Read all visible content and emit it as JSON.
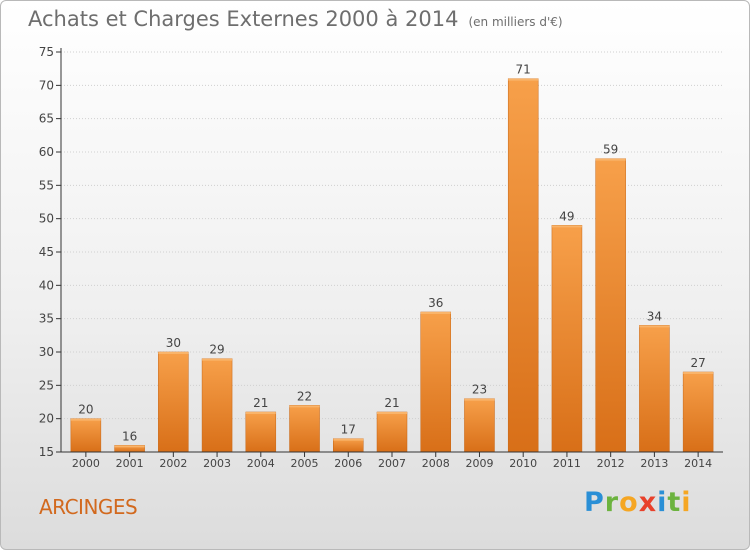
{
  "header": {
    "title": "Achats et Charges Externes 2000 à 2014",
    "subtitle": "(en milliers d'€)"
  },
  "footer": {
    "town": "ARCINGES",
    "logo_text": "Proxiti"
  },
  "colors": {
    "bar_light": "#f7a04a",
    "bar_dark": "#d86f18",
    "axis": "#333333",
    "grid": "#d0d0d0"
  },
  "chart_data": {
    "type": "bar",
    "title": "Achats et Charges Externes 2000 à 2014",
    "subtitle": "(en milliers d'€)",
    "xlabel": "",
    "ylabel": "",
    "categories": [
      "2000",
      "2001",
      "2002",
      "2003",
      "2004",
      "2005",
      "2006",
      "2007",
      "2008",
      "2009",
      "2010",
      "2011",
      "2012",
      "2013",
      "2014"
    ],
    "values": [
      20,
      16,
      30,
      29,
      21,
      22,
      17,
      21,
      36,
      23,
      71,
      49,
      59,
      34,
      27
    ],
    "ylim": [
      15,
      75
    ],
    "yticks": [
      15,
      20,
      25,
      30,
      35,
      40,
      45,
      50,
      55,
      60,
      65,
      70,
      75
    ],
    "grid": true,
    "legend": "none"
  }
}
